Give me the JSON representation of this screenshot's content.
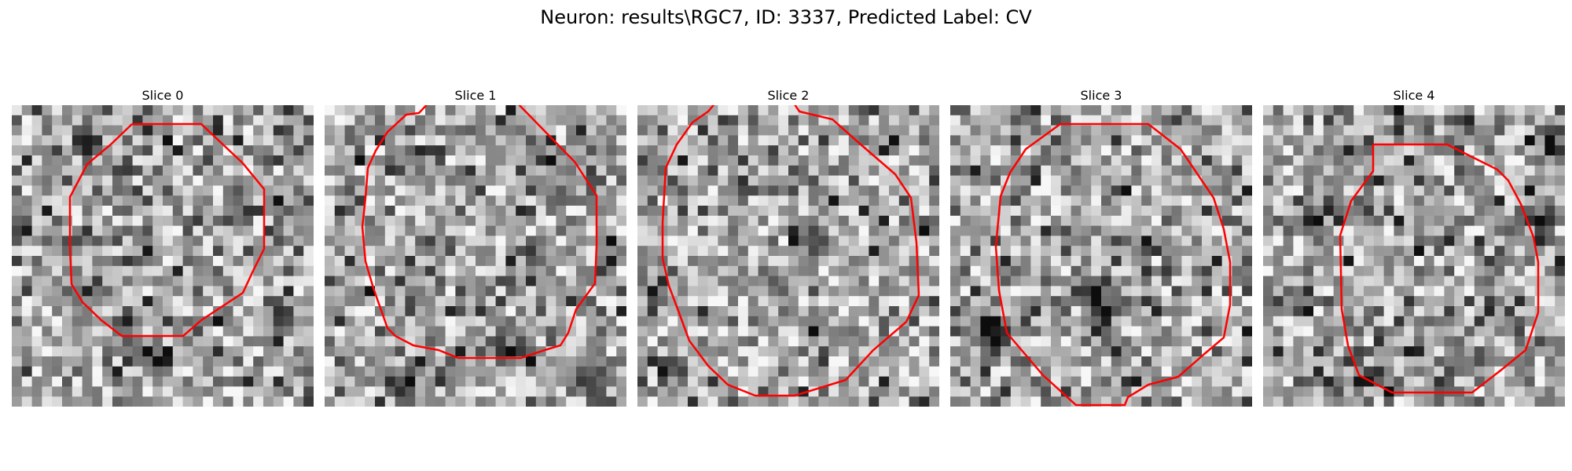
{
  "figure": {
    "title": "Neuron: results\\RGC7, ID: 3337, Predicted Label: CV",
    "contour_color": "#ff0000",
    "colormap": "gray"
  },
  "slices": [
    {
      "title": "Slice 0",
      "seed": 11,
      "darkness": 0.4,
      "dark_spots": [
        [
          7,
          3
        ],
        [
          22,
          10
        ],
        [
          26,
          20
        ],
        [
          14,
          25
        ]
      ]
    },
    {
      "title": "Slice 1",
      "seed": 23,
      "darkness": 0.42,
      "dark_spots": [
        [
          21,
          4
        ],
        [
          18,
          24
        ],
        [
          26,
          27
        ],
        [
          7,
          27
        ]
      ]
    },
    {
      "title": "Slice 2",
      "seed": 37,
      "darkness": 0.35,
      "dark_spots": [
        [
          17,
          12
        ],
        [
          14,
          17
        ],
        [
          3,
          26
        ],
        [
          2,
          17
        ]
      ]
    },
    {
      "title": "Slice 3",
      "seed": 51,
      "darkness": 0.37,
      "dark_spots": [
        [
          14,
          18
        ],
        [
          3,
          21
        ],
        [
          4,
          23
        ],
        [
          15,
          20
        ]
      ]
    },
    {
      "title": "Slice 4",
      "seed": 67,
      "darkness": 0.45,
      "dark_spots": [
        [
          9,
          27
        ],
        [
          28,
          4
        ],
        [
          5,
          10
        ],
        [
          27,
          11
        ]
      ]
    }
  ]
}
